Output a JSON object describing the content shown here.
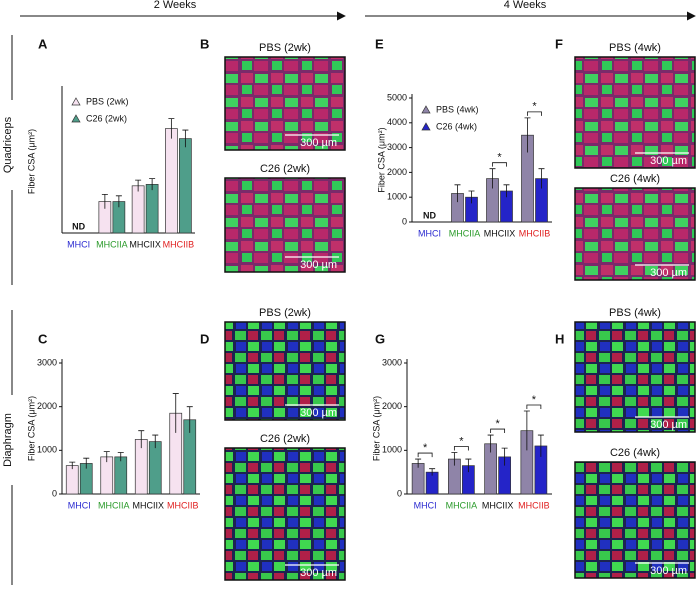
{
  "header": {
    "left": "2 Weeks",
    "right": "4 Weeks"
  },
  "row_labels": [
    "Quadriceps",
    "Diaphragm"
  ],
  "chart_data": [
    {
      "label": "A",
      "type": "bar",
      "y_label": "Fiber CSA (μm²)",
      "categories": [
        "MHCI",
        "MHCIIA",
        "MHCIIX",
        "MHCIIB"
      ],
      "category_colors": [
        "#2a2ad0",
        "#2a9a2a",
        "#111111",
        "#e02020"
      ],
      "ylim": [
        0,
        5000
      ],
      "na_label": "ND",
      "legend": "upper left",
      "series": [
        {
          "name": "PBS (2wk)",
          "color": "#f6e2f0",
          "values": [
            null,
            1100,
            1650,
            3650
          ],
          "errors": [
            null,
            250,
            200,
            350
          ]
        },
        {
          "name": "C26 (2wk)",
          "color": "#4f9e8a",
          "values": [
            null,
            1100,
            1700,
            3300
          ],
          "errors": [
            null,
            200,
            200,
            300
          ]
        }
      ]
    },
    {
      "label": "E",
      "type": "bar",
      "y_label": "Fiber CSA (μm²)",
      "categories": [
        "MHCI",
        "MHCIIA",
        "MHCIIX",
        "MHCIIB"
      ],
      "category_colors": [
        "#2a2ad0",
        "#2a9a2a",
        "#111111",
        "#e02020"
      ],
      "ylim": [
        0,
        5000
      ],
      "yticks": [
        0,
        1000,
        2000,
        3000,
        4000,
        5000
      ],
      "na_label": "ND",
      "legend": "upper left",
      "significance": [
        null,
        null,
        "*",
        "*"
      ],
      "series": [
        {
          "name": "PBS (4wk)",
          "color": "#8f84a8",
          "values": [
            null,
            1150,
            1750,
            3500
          ],
          "errors": [
            null,
            350,
            400,
            700
          ]
        },
        {
          "name": "C26 (4wk)",
          "color": "#2424c8",
          "values": [
            null,
            1000,
            1250,
            1750
          ],
          "errors": [
            null,
            250,
            250,
            400
          ]
        }
      ]
    },
    {
      "label": "C",
      "type": "bar",
      "y_label": "Fiber CSA (μm²)",
      "categories": [
        "MHCI",
        "MHCIIA",
        "MHCIIX",
        "MHCIIB"
      ],
      "category_colors": [
        "#2a2ad0",
        "#2a9a2a",
        "#111111",
        "#e02020"
      ],
      "ylim": [
        0,
        3000
      ],
      "yticks": [
        0,
        1000,
        2000,
        3000
      ],
      "series": [
        {
          "color": "#f6e2f0",
          "values": [
            650,
            850,
            1250,
            1850
          ],
          "errors": [
            80,
            120,
            200,
            450
          ]
        },
        {
          "color": "#4f9e8a",
          "values": [
            700,
            850,
            1200,
            1700
          ],
          "errors": [
            120,
            100,
            150,
            300
          ]
        }
      ]
    },
    {
      "label": "G",
      "type": "bar",
      "y_label": "Fiber CSA (μm²)",
      "categories": [
        "MHCI",
        "MHCIIA",
        "MHCIIX",
        "MHCIIB"
      ],
      "category_colors": [
        "#2a2ad0",
        "#2a9a2a",
        "#111111",
        "#e02020"
      ],
      "ylim": [
        0,
        3000
      ],
      "yticks": [
        0,
        1000,
        2000,
        3000
      ],
      "significance": [
        "*",
        "*",
        "*",
        "*"
      ],
      "series": [
        {
          "color": "#8f84a8",
          "values": [
            700,
            800,
            1150,
            1450
          ],
          "errors": [
            100,
            150,
            200,
            450
          ]
        },
        {
          "color": "#2424c8",
          "values": [
            500,
            650,
            850,
            1100
          ],
          "errors": [
            80,
            150,
            200,
            250
          ]
        }
      ]
    }
  ],
  "images": [
    {
      "label": "B",
      "panels": [
        {
          "title": "PBS (2wk)",
          "scale": "300 µm"
        },
        {
          "title": "C26 (2wk)",
          "scale": "300 µm"
        }
      ]
    },
    {
      "label": "F",
      "panels": [
        {
          "title": "PBS (4wk)",
          "scale": "300 µm"
        },
        {
          "title": "C26 (4wk)",
          "scale": "300 µm"
        }
      ]
    },
    {
      "label": "D",
      "panels": [
        {
          "title": "PBS (2wk)",
          "scale": "300 µm"
        },
        {
          "title": "C26 (2wk)",
          "scale": "300 µm"
        }
      ]
    },
    {
      "label": "H",
      "panels": [
        {
          "title": "PBS (4wk)",
          "scale": "300 µm"
        },
        {
          "title": "C26 (4wk)",
          "scale": "300 µm"
        }
      ]
    }
  ]
}
